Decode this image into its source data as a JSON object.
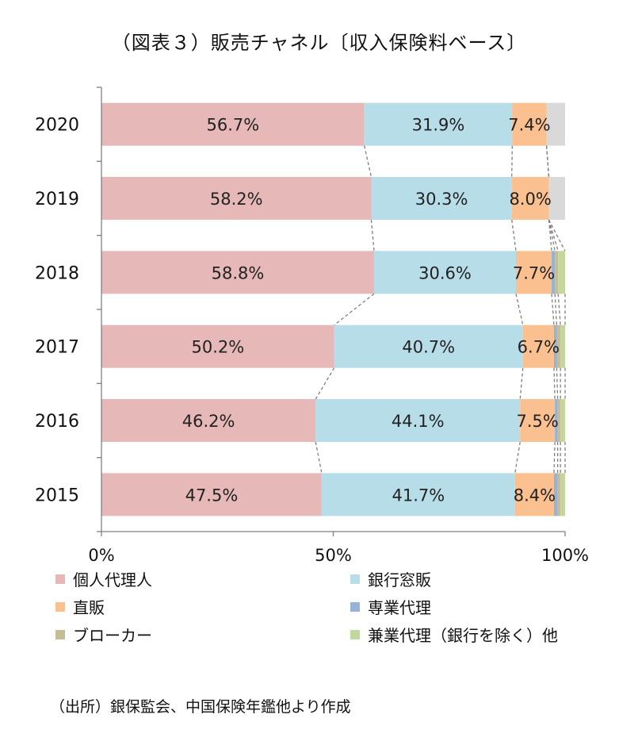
{
  "title": "（図表３）販売チャネル〔収入保険料ベース〕",
  "source": "（出所）銀保監会、中国保険年鑑他より作成",
  "chart_data": {
    "type": "bar",
    "orientation": "horizontal-stacked-100",
    "categories": [
      "2020",
      "2019",
      "2018",
      "2017",
      "2016",
      "2015"
    ],
    "xlim": [
      0,
      100
    ],
    "x_ticks": [
      "0%",
      "50%",
      "100%"
    ],
    "legend_position": "bottom",
    "series": [
      {
        "name": "個人代理人",
        "color": "#e6b9b8",
        "values": [
          56.7,
          58.2,
          58.8,
          50.2,
          46.2,
          47.5
        ],
        "labels": [
          "56.7%",
          "58.2%",
          "58.8%",
          "50.2%",
          "46.2%",
          "47.5%"
        ]
      },
      {
        "name": "銀行窓販",
        "color": "#b7dde8",
        "values": [
          31.9,
          30.3,
          30.6,
          40.7,
          44.1,
          41.7
        ],
        "labels": [
          "31.9%",
          "30.3%",
          "30.6%",
          "40.7%",
          "44.1%",
          "41.7%"
        ]
      },
      {
        "name": "直販",
        "color": "#fac090",
        "values": [
          7.4,
          8.0,
          7.7,
          6.7,
          7.5,
          8.4
        ],
        "labels": [
          "7.4%",
          "8.0%",
          "7.7%",
          "6.7%",
          "7.5%",
          "8.4%"
        ]
      },
      {
        "name": "専業代理",
        "color": "#95b3d7",
        "values": [
          0,
          0,
          0.7,
          0.6,
          0.6,
          0.8
        ]
      },
      {
        "name": "ブローカー",
        "color": "#c4bd97",
        "values": [
          0,
          0,
          0.7,
          0.8,
          0.6,
          0.6
        ]
      },
      {
        "name": "兼業代理（銀行を除く）他",
        "color": "#c3d69b",
        "values": [
          0,
          0,
          1.5,
          1.0,
          1.0,
          1.0
        ]
      },
      {
        "name": "",
        "color": "#d9d9d9",
        "values": [
          4.0,
          3.5,
          0,
          0,
          0,
          0
        ]
      }
    ],
    "series_lines": "dashed",
    "grid": false
  }
}
